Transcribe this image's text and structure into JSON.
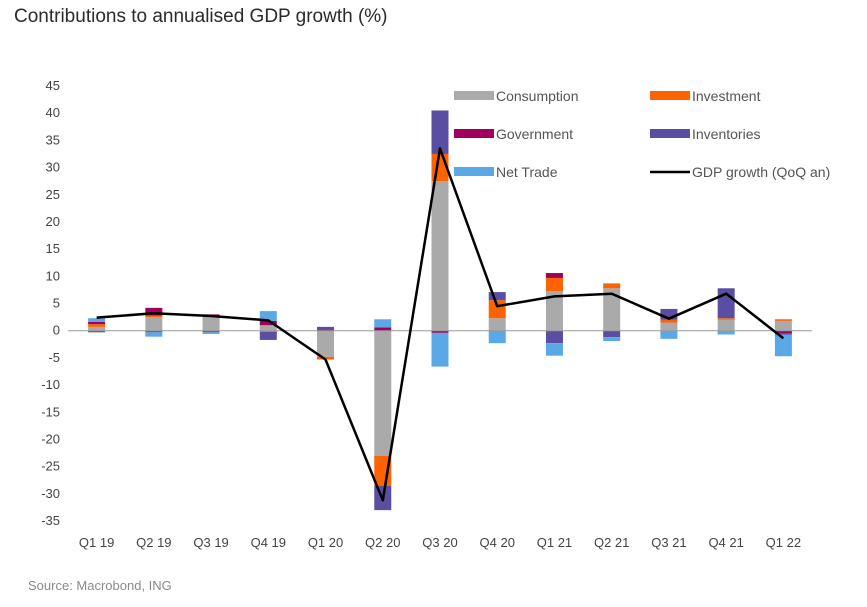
{
  "title": "Contributions to annualised GDP growth (%)",
  "source": "Source: Macrobond, ING",
  "chart_data": {
    "type": "bar",
    "stacked": true,
    "categories": [
      "Q1 19",
      "Q2 19",
      "Q3 19",
      "Q4 19",
      "Q1 20",
      "Q2 20",
      "Q3 20",
      "Q4 20",
      "Q1 21",
      "Q2 21",
      "Q3 21",
      "Q4 21",
      "Q1 22"
    ],
    "ylim": [
      -35,
      45
    ],
    "yticks": [
      45,
      40,
      35,
      30,
      25,
      20,
      15,
      10,
      5,
      0,
      -5,
      -10,
      -15,
      -20,
      -25,
      -30,
      -35
    ],
    "legend_position": "top-right",
    "series": [
      {
        "name": "Consumption",
        "color": "#aaaaaa",
        "values": [
          0.7,
          2.5,
          2.5,
          1.0,
          -4.8,
          -23.0,
          27.5,
          2.3,
          7.3,
          7.8,
          1.5,
          2.0,
          1.8
        ]
      },
      {
        "name": "Investment",
        "color": "#ff6200",
        "values": [
          0.5,
          0.3,
          0.3,
          -0.2,
          -0.5,
          -5.5,
          5.0,
          3.3,
          2.4,
          0.9,
          0.5,
          0.3,
          0.3
        ]
      },
      {
        "name": "Government",
        "color": "#a0005e",
        "values": [
          0.4,
          1.4,
          0.2,
          0.8,
          0.2,
          0.6,
          -0.4,
          0.0,
          0.9,
          0.0,
          0.0,
          0.0,
          -0.5
        ]
      },
      {
        "name": "Inventories",
        "color": "#5a4ea2",
        "values": [
          -0.3,
          -0.3,
          -0.3,
          -1.5,
          0.5,
          -4.5,
          8.0,
          1.5,
          -2.3,
          -1.2,
          2.0,
          5.5,
          -0.2
        ]
      },
      {
        "name": "Net Trade",
        "color": "#5aa9e6",
        "values": [
          0.7,
          -0.8,
          -0.3,
          1.8,
          0.0,
          1.5,
          -6.2,
          -2.3,
          -2.3,
          -0.7,
          -1.5,
          -0.7,
          -4.0
        ]
      }
    ],
    "line": {
      "name": "GDP growth (QoQ an)",
      "color": "#000000",
      "values": [
        2.4,
        3.2,
        2.7,
        1.9,
        -5.3,
        -31.2,
        33.5,
        4.5,
        6.3,
        6.8,
        2.2,
        6.8,
        -1.4
      ]
    }
  }
}
